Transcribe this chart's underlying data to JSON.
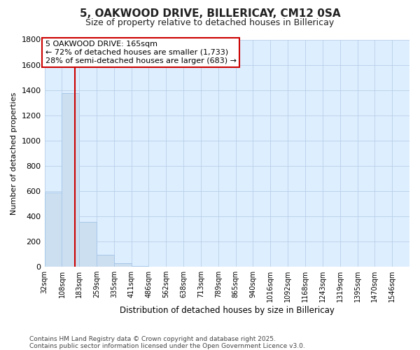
{
  "title1": "5, OAKWOOD DRIVE, BILLERICAY, CM12 0SA",
  "title2": "Size of property relative to detached houses in Billericay",
  "xlabel": "Distribution of detached houses by size in Billericay",
  "ylabel": "Number of detached properties",
  "footnote1": "Contains HM Land Registry data © Crown copyright and database right 2025.",
  "footnote2": "Contains public sector information licensed under the Open Government Licence v3.0.",
  "bin_labels": [
    "32sqm",
    "108sqm",
    "183sqm",
    "259sqm",
    "335sqm",
    "411sqm",
    "486sqm",
    "562sqm",
    "638sqm",
    "713sqm",
    "789sqm",
    "865sqm",
    "940sqm",
    "1016sqm",
    "1092sqm",
    "1168sqm",
    "1243sqm",
    "1319sqm",
    "1395sqm",
    "1470sqm",
    "1546sqm"
  ],
  "bin_edges": [
    32,
    108,
    183,
    259,
    335,
    411,
    486,
    562,
    638,
    713,
    789,
    865,
    940,
    1016,
    1092,
    1168,
    1243,
    1319,
    1395,
    1470,
    1546
  ],
  "bar_heights": [
    590,
    1375,
    355,
    95,
    30,
    5,
    0,
    0,
    0,
    0,
    0,
    0,
    0,
    0,
    0,
    0,
    0,
    0,
    0,
    0
  ],
  "bar_color": "#ccdff0",
  "bar_edge_color": "#a8c8e8",
  "grid_color": "#b8cfe8",
  "plot_bg_color": "#ddeeff",
  "figure_bg_color": "#ffffff",
  "red_line_x": 165,
  "red_line_color": "#cc0000",
  "annotation_text": "5 OAKWOOD DRIVE: 165sqm\n← 72% of detached houses are smaller (1,733)\n28% of semi-detached houses are larger (683) →",
  "annotation_box_color": "#ffffff",
  "annotation_box_edge": "#cc0000",
  "ylim": [
    0,
    1800
  ],
  "yticks": [
    0,
    200,
    400,
    600,
    800,
    1000,
    1200,
    1400,
    1600,
    1800
  ]
}
